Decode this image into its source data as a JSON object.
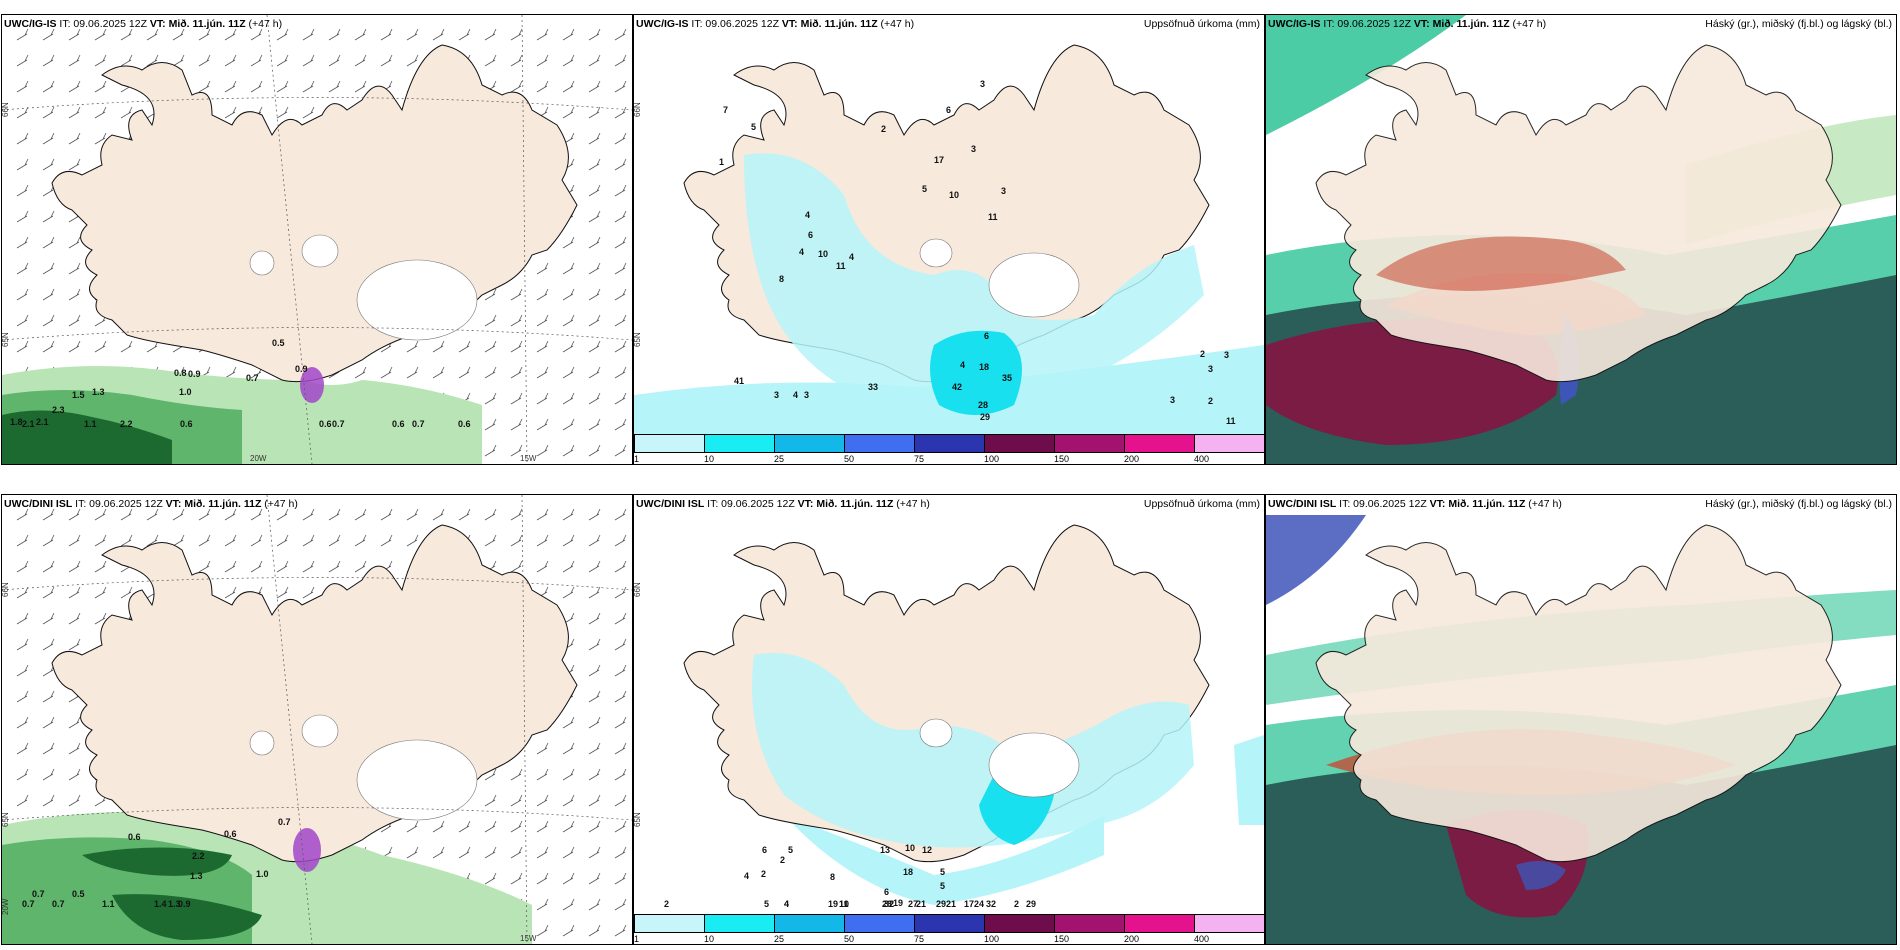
{
  "colors": {
    "land": "#f7e9dc",
    "sea": "#ffffff",
    "glacier": "#ffffff",
    "precip_light": "#b5f4f9",
    "precip_mid": "#19e0ef",
    "green_light": "#b9e4b5",
    "green_mid": "#5fb56b",
    "green_dark": "#1c6a30",
    "cloud_teal": "#1fbf8e",
    "cloud_dark": "#2b5e58",
    "cloud_maroon": "#7a1c44",
    "cloud_red": "#c9442e",
    "cloud_blue": "#3e55b8"
  },
  "panels": [
    {
      "id": "top-left",
      "model": "UWC/IG-IS",
      "it": "IT: 09.06.2025 12Z",
      "vt_label": "VT:",
      "vt_date": "Mið. 11.jún. 11Z",
      "lead": "(+47 h)",
      "right_title": "",
      "axis_labels": [
        "66N",
        "65N",
        "20W",
        "15W"
      ],
      "labels": [
        "0.5",
        "0.9",
        "0.8",
        "0.9",
        "0.7",
        "1.0",
        "1.5",
        "1.3",
        "1.8",
        "2.1",
        "2.3",
        "2.1",
        "2.2",
        "0.6",
        "1.1",
        "0.6",
        "0.7",
        "0.6",
        "0.7",
        "0.6"
      ]
    },
    {
      "id": "top-middle",
      "model": "UWC/IG-IS",
      "it": "IT: 09.06.2025 12Z",
      "vt_label": "VT:",
      "vt_date": "Mið. 11.jún. 11Z",
      "lead": "(+47 h)",
      "right_title": "Uppsöfnuð úrkoma (mm)",
      "axis_labels": [
        "66N",
        "65N"
      ],
      "labels": [
        "3",
        "6",
        "17",
        "3",
        "5",
        "10",
        "11",
        "6",
        "4",
        "4",
        "10",
        "11",
        "8",
        "6",
        "4",
        "18",
        "35",
        "42",
        "33",
        "28",
        "29",
        "41",
        "4",
        "3",
        "3",
        "3",
        "2",
        "11",
        "2",
        "3",
        "3",
        "7",
        "5",
        "4",
        "1",
        "2",
        "3"
      ]
    },
    {
      "id": "top-right",
      "model": "UWC/IG-IS",
      "it": "IT: 09.06.2025 12Z",
      "vt_label": "VT:",
      "vt_date": "Mið. 11.jún. 11Z",
      "lead": "(+47 h)",
      "right_title": "Háský (gr.), miðský (fj.bl.) og lágský (bl.)",
      "axis_labels": [],
      "labels": []
    },
    {
      "id": "bottom-left",
      "model": "UWC/DINI ISL",
      "it": "IT: 09.06.2025 12Z",
      "vt_label": "VT:",
      "vt_date": "Mið. 11.jún. 11Z",
      "lead": "(+47 h)",
      "right_title": "",
      "axis_labels": [
        "66N",
        "65N",
        "20W",
        "15W"
      ],
      "labels": [
        "0.7",
        "0.6",
        "0.6",
        "1.0",
        "2.2",
        "1.3",
        "0.7",
        "0.5",
        "0.7",
        "0.7",
        "1.1",
        "0.9",
        "1.4",
        "1.3"
      ]
    },
    {
      "id": "bottom-middle",
      "model": "UWC/DINI ISL",
      "it": "IT: 09.06.2025 12Z",
      "vt_label": "VT:",
      "vt_date": "Mið. 11.jún. 11Z",
      "lead": "(+47 h)",
      "right_title": "Uppsöfnuð úrkoma (mm)",
      "axis_labels": [
        "66N",
        "65N"
      ],
      "labels": [
        "2",
        "2",
        "4",
        "6",
        "5",
        "8",
        "13",
        "12",
        "10",
        "18",
        "19",
        "21",
        "28",
        "32",
        "29",
        "24",
        "27",
        "21",
        "17",
        "29",
        "32",
        "19",
        "10",
        "11",
        "2",
        "5",
        "4",
        "4",
        "6",
        "2",
        "5",
        "5",
        "2"
      ]
    },
    {
      "id": "bottom-right",
      "model": "UWC/DINI ISL",
      "it": "IT: 09.06.2025 12Z",
      "vt_label": "VT:",
      "vt_date": "Mið. 11.jún. 11Z",
      "lead": "(+47 h)",
      "right_title": "Háský (gr.), miðský (fj.bl.) og lágský (bl.)",
      "axis_labels": [],
      "labels": []
    }
  ],
  "colorbar": {
    "ticks": [
      "1",
      "10",
      "25",
      "50",
      "75",
      "100",
      "150",
      "200",
      "400"
    ],
    "colors": [
      "#c7f5f9",
      "#19ecf2",
      "#14b8e8",
      "#3f6ff0",
      "#2b35b0",
      "#6e0c4c",
      "#a3126f",
      "#e4138d",
      "#f4b3f0"
    ]
  }
}
